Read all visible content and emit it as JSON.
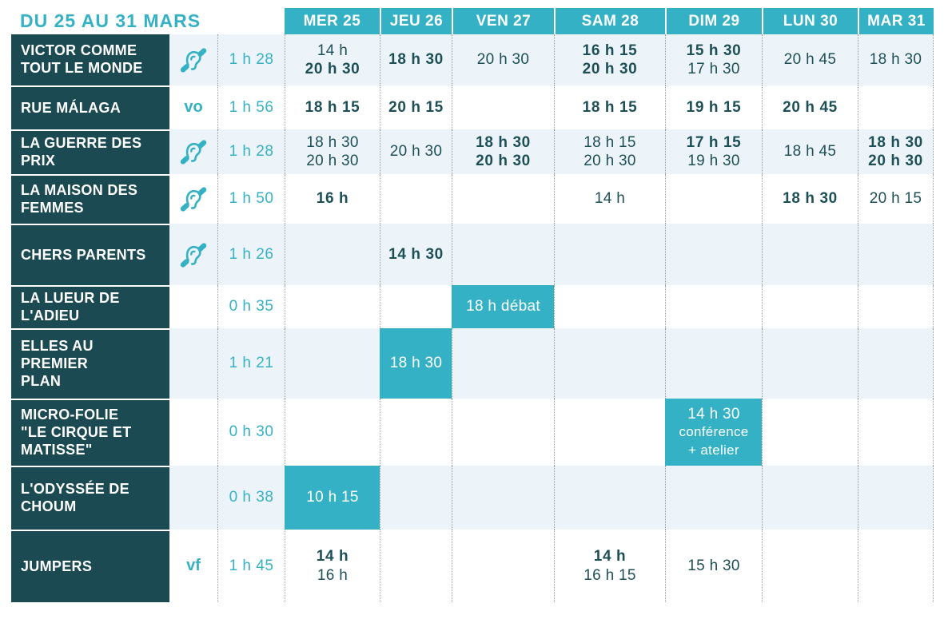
{
  "colors": {
    "accent": "#35b1c5",
    "dark_title_bg": "#1b4a52",
    "time_text": "#1d4f57",
    "row_alt_bg": "#edf4f9"
  },
  "header": {
    "range_label": "DU 25 AU 31 MARS",
    "days": [
      "MER 25",
      "JEU 26",
      "VEN 27",
      "SAM 28",
      "DIM 29",
      "LUN 30",
      "MAR 31"
    ]
  },
  "icons": {
    "hearing": "hearing-impaired-icon"
  },
  "rows": [
    {
      "title_lines": [
        "VICTOR COMME",
        "TOUT LE MONDE"
      ],
      "badge": "hearing",
      "duration": "1 h 28",
      "cells": [
        {
          "lines": [
            {
              "t": "14 h",
              "b": false
            },
            {
              "t": "20 h 30",
              "b": true
            }
          ]
        },
        {
          "lines": [
            {
              "t": "18 h 30",
              "b": true
            }
          ]
        },
        {
          "lines": [
            {
              "t": "20 h 30",
              "b": false
            }
          ]
        },
        {
          "lines": [
            {
              "t": "16 h 15",
              "b": true
            },
            {
              "t": "20 h 30",
              "b": true
            }
          ]
        },
        {
          "lines": [
            {
              "t": "15 h 30",
              "b": true
            },
            {
              "t": "17 h 30",
              "b": false
            }
          ]
        },
        {
          "lines": [
            {
              "t": "20 h 45",
              "b": false
            }
          ]
        },
        {
          "lines": [
            {
              "t": "18 h 30",
              "b": false
            }
          ]
        }
      ]
    },
    {
      "title_lines": [
        "RUE MÁLAGA"
      ],
      "badge": "vo",
      "duration": "1 h 56",
      "cells": [
        {
          "lines": [
            {
              "t": "18 h 15",
              "b": true
            }
          ]
        },
        {
          "lines": [
            {
              "t": "20 h 15",
              "b": true
            }
          ]
        },
        {
          "lines": []
        },
        {
          "lines": [
            {
              "t": "18 h 15",
              "b": true
            }
          ]
        },
        {
          "lines": [
            {
              "t": "19 h 15",
              "b": true
            }
          ]
        },
        {
          "lines": [
            {
              "t": "20 h 45",
              "b": true
            }
          ]
        },
        {
          "lines": []
        }
      ]
    },
    {
      "title_lines": [
        "LA GUERRE DES",
        "PRIX"
      ],
      "badge": "hearing",
      "duration": "1 h 28",
      "cells": [
        {
          "lines": [
            {
              "t": "18 h 30",
              "b": false
            },
            {
              "t": "20 h 30",
              "b": false
            }
          ]
        },
        {
          "lines": [
            {
              "t": "20 h 30",
              "b": false
            }
          ]
        },
        {
          "lines": [
            {
              "t": "18 h 30",
              "b": true
            },
            {
              "t": "20 h 30",
              "b": true
            }
          ]
        },
        {
          "lines": [
            {
              "t": "18 h 15",
              "b": false
            },
            {
              "t": "20 h 30",
              "b": false
            }
          ]
        },
        {
          "lines": [
            {
              "t": "17 h 15",
              "b": true
            },
            {
              "t": "19 h 30",
              "b": false
            }
          ]
        },
        {
          "lines": [
            {
              "t": "18 h 45",
              "b": false
            }
          ]
        },
        {
          "lines": [
            {
              "t": "18 h 30",
              "b": true
            },
            {
              "t": "20 h 30",
              "b": true
            }
          ]
        }
      ]
    },
    {
      "title_lines": [
        "LA MAISON DES",
        "FEMMES"
      ],
      "badge": "hearing",
      "duration": "1 h 50",
      "cells": [
        {
          "lines": [
            {
              "t": "16 h",
              "b": true
            }
          ]
        },
        {
          "lines": []
        },
        {
          "lines": []
        },
        {
          "lines": [
            {
              "t": "14 h",
              "b": false
            }
          ]
        },
        {
          "lines": []
        },
        {
          "lines": [
            {
              "t": "18 h 30",
              "b": true
            }
          ]
        },
        {
          "lines": [
            {
              "t": "20 h 15",
              "b": false
            }
          ]
        }
      ]
    },
    {
      "title_lines": [
        "CHERS PARENTS"
      ],
      "badge": "hearing",
      "duration": "1 h 26",
      "cells": [
        {
          "lines": []
        },
        {
          "lines": [
            {
              "t": "14 h 30",
              "b": true
            }
          ]
        },
        {
          "lines": []
        },
        {
          "lines": []
        },
        {
          "lines": []
        },
        {
          "lines": []
        },
        {
          "lines": []
        }
      ]
    },
    {
      "title_lines": [
        "LA LUEUR DE",
        "L'ADIEU"
      ],
      "badge": "",
      "duration": "0 h 35",
      "cells": [
        {
          "lines": []
        },
        {
          "lines": []
        },
        {
          "highlight": true,
          "lines": [
            {
              "t": "18 h débat",
              "b": false
            }
          ]
        },
        {
          "lines": []
        },
        {
          "lines": []
        },
        {
          "lines": []
        },
        {
          "lines": []
        }
      ]
    },
    {
      "title_lines": [
        "ELLES AU PREMIER",
        "PLAN"
      ],
      "badge": "",
      "duration": "1 h 21",
      "cells": [
        {
          "lines": []
        },
        {
          "highlight": true,
          "lines": [
            {
              "t": "18 h 30",
              "b": false
            }
          ]
        },
        {
          "lines": []
        },
        {
          "lines": []
        },
        {
          "lines": []
        },
        {
          "lines": []
        },
        {
          "lines": []
        }
      ]
    },
    {
      "title_lines": [
        "MICRO-FOLIE",
        "\"LE CIRQUE ET",
        "MATISSE\""
      ],
      "badge": "",
      "duration": "0 h 30",
      "cells": [
        {
          "lines": []
        },
        {
          "lines": []
        },
        {
          "lines": []
        },
        {
          "lines": []
        },
        {
          "highlight": true,
          "lines": [
            {
              "t": "14 h 30",
              "b": false
            },
            {
              "t": "conférence",
              "b": false,
              "s": true
            },
            {
              "t": "+ atelier",
              "b": false,
              "s": true
            }
          ]
        },
        {
          "lines": []
        },
        {
          "lines": []
        }
      ]
    },
    {
      "title_lines": [
        "L'ODYSSÉE DE",
        "CHOUM"
      ],
      "badge": "",
      "duration": "0 h 38",
      "cells": [
        {
          "highlight": true,
          "lines": [
            {
              "t": "10 h 15",
              "b": false
            }
          ]
        },
        {
          "lines": []
        },
        {
          "lines": []
        },
        {
          "lines": []
        },
        {
          "lines": []
        },
        {
          "lines": []
        },
        {
          "lines": []
        }
      ]
    },
    {
      "title_lines": [
        "JUMPERS"
      ],
      "badge": "vf",
      "duration": "1 h 45",
      "cells": [
        {
          "lines": [
            {
              "t": "14 h",
              "b": true
            },
            {
              "t": "16 h",
              "b": false
            }
          ]
        },
        {
          "lines": []
        },
        {
          "lines": []
        },
        {
          "lines": [
            {
              "t": "14 h",
              "b": true
            },
            {
              "t": "16 h 15",
              "b": false
            }
          ]
        },
        {
          "lines": [
            {
              "t": "15 h 30",
              "b": false
            }
          ]
        },
        {
          "lines": []
        },
        {
          "lines": []
        }
      ]
    }
  ]
}
